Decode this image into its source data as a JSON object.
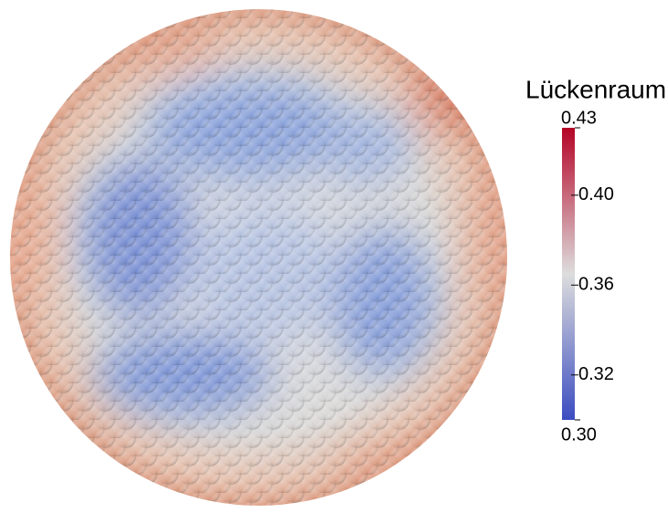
{
  "colorbar": {
    "title": "Lückenraum",
    "max": {
      "value": 0.43,
      "label": "0.43"
    },
    "min": {
      "value": 0.3,
      "label": "0.30"
    },
    "ticks": [
      {
        "value": 0.4,
        "label": "0.40"
      },
      {
        "value": 0.36,
        "label": "0.36"
      },
      {
        "value": 0.32,
        "label": "0.32"
      }
    ],
    "colors": [
      "#3b4cc0",
      "#dddddd",
      "#b40426"
    ]
  }
}
